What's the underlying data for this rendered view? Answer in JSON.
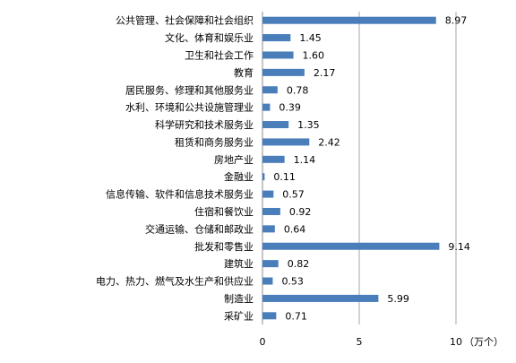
{
  "chart_data": {
    "type": "bar",
    "orientation": "horizontal",
    "categories": [
      "公共管理、社会保障和社会组织",
      "文化、体育和娱乐业",
      "卫生和社会工作",
      "教育",
      "居民服务、修理和其他服务业",
      "水利、环境和公共设施管理业",
      "科学研究和技术服务业",
      "租赁和商务服务业",
      "房地产业",
      "金融业",
      "信息传输、软件和信息技术服务业",
      "住宿和餐饮业",
      "交通运输、仓储和邮政业",
      "批发和零售业",
      "建筑业",
      "电力、热力、燃气及水生产和供应业",
      "制造业",
      "采矿业"
    ],
    "values": [
      8.97,
      1.45,
      1.6,
      2.17,
      0.78,
      0.39,
      1.35,
      2.42,
      1.14,
      0.11,
      0.57,
      0.92,
      0.64,
      9.14,
      0.82,
      0.53,
      5.99,
      0.71
    ],
    "value_labels": [
      "8.97",
      "1.45",
      "1.60",
      "2.17",
      "0.78",
      "0.39",
      "1.35",
      "2.42",
      "1.14",
      "0.11",
      "0.57",
      "0.92",
      "0.64",
      "9.14",
      "0.82",
      "0.53",
      "5.99",
      "0.71"
    ],
    "xlim": [
      0,
      10
    ],
    "xticks": [
      0,
      5,
      10
    ],
    "xtick_labels": [
      "0",
      "5",
      "10"
    ],
    "xlabel": "（万个）",
    "grid": "vertical",
    "bar_color": "#4a7ebb"
  }
}
